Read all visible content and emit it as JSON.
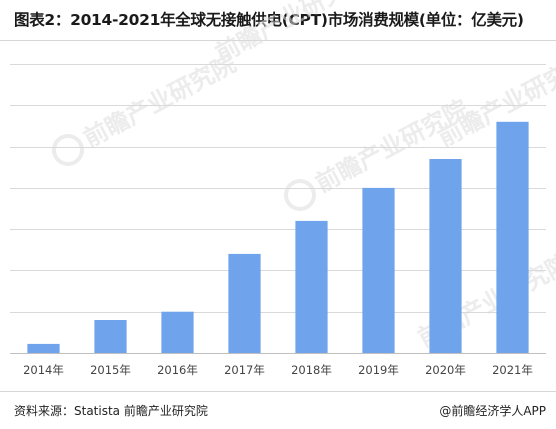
{
  "title": "图表2：2014-2021年全球无接触供电(CPT)市场消费规模(单位：亿美元)",
  "footer": {
    "source": "资料来源：Statista 前瞻产业研究院",
    "brand": "@前瞻经济学人APP"
  },
  "colors": {
    "bar": "#6fa4ec",
    "grid": "#d9d9d9",
    "axis_text": "#444444",
    "watermark": "#e4e4e4"
  },
  "chart_data": {
    "type": "bar",
    "categories": [
      "2014年",
      "2015年",
      "2016年",
      "2017年",
      "2018年",
      "2019年",
      "2020年",
      "2021年"
    ],
    "values": [
      2.2,
      8.0,
      10.0,
      24.0,
      32.0,
      40.0,
      47.0,
      56.0
    ],
    "ylim": [
      0,
      70
    ],
    "grid": true,
    "gridline_count": 7,
    "xlabel": "",
    "ylabel": ""
  }
}
